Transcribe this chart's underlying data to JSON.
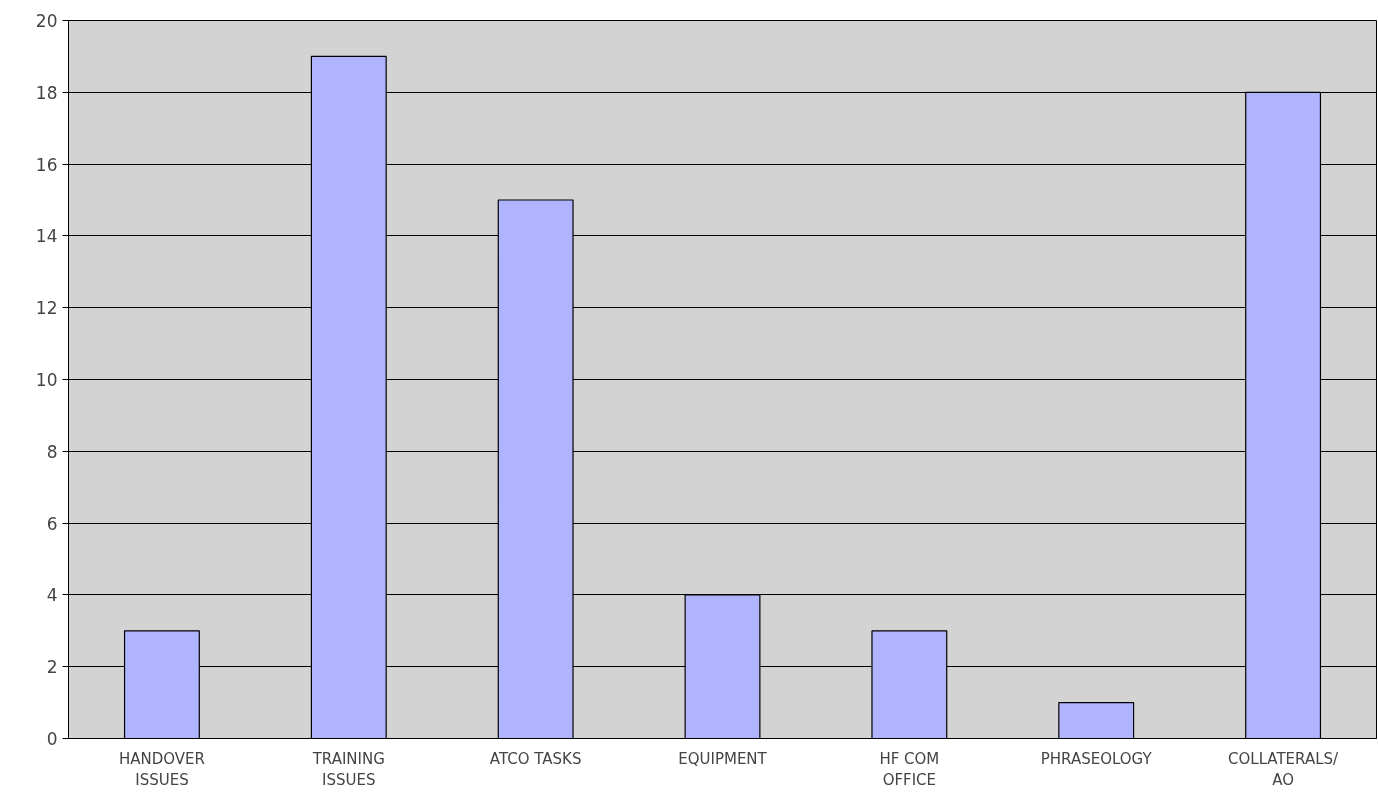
{
  "chart_data": {
    "type": "bar",
    "categories": [
      "HANDOVER\nISSUES",
      "TRAINING\nISSUES",
      "ATCO TASKS",
      "EQUIPMENT",
      "HF COM\nOFFICE",
      "PHRASEOLOGY",
      "COLLATERALS/\nAO"
    ],
    "values": [
      3,
      19,
      15,
      4,
      3,
      1,
      18
    ],
    "color": "#b0b4ff",
    "ylim": [
      0,
      20
    ],
    "yticks": [
      0,
      2,
      4,
      6,
      8,
      10,
      12,
      14,
      16,
      18,
      20
    ],
    "grid": "y"
  }
}
